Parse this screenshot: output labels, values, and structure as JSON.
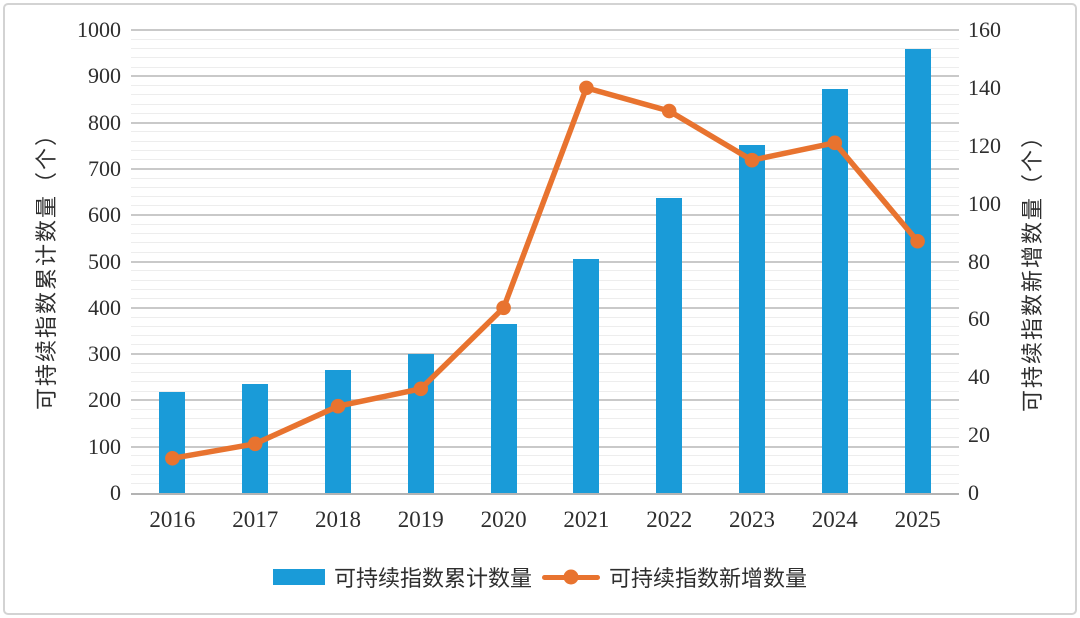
{
  "chart_data": {
    "type": "combo-bar-line",
    "categories": [
      "2016",
      "2017",
      "2018",
      "2019",
      "2020",
      "2021",
      "2022",
      "2023",
      "2024",
      "2025"
    ],
    "series": [
      {
        "name": "可持续指数累计数量",
        "type": "bar",
        "axis": "left",
        "color": "#1A9BD8",
        "values": [
          218,
          235,
          265,
          301,
          365,
          505,
          637,
          752,
          873,
          960
        ]
      },
      {
        "name": "可持续指数新增数量",
        "type": "line",
        "axis": "right",
        "color": "#E8732F",
        "values": [
          12,
          17,
          30,
          36,
          64,
          140,
          132,
          115,
          121,
          87
        ]
      }
    ],
    "left_axis": {
      "title": "可持续指数累计数量（个）",
      "min": 0,
      "max": 1000,
      "major_step": 100,
      "minor_step": 20,
      "tick_labels": [
        "0",
        "100",
        "200",
        "300",
        "400",
        "500",
        "600",
        "700",
        "800",
        "900",
        "1000"
      ]
    },
    "right_axis": {
      "title": "可持续指数新增数量（个）",
      "min": 0,
      "max": 160,
      "major_step": 20,
      "tick_labels": [
        "0",
        "20",
        "40",
        "60",
        "80",
        "100",
        "120",
        "140",
        "160"
      ]
    },
    "grid": {
      "major": true,
      "minor": true,
      "major_color": "#C9C9C9",
      "minor_color": "#EDEDED",
      "axis_line_color": "#B3B3B3"
    },
    "legend": {
      "position": "bottom",
      "items": [
        "可持续指数累计数量",
        "可持续指数新增数量"
      ]
    }
  }
}
